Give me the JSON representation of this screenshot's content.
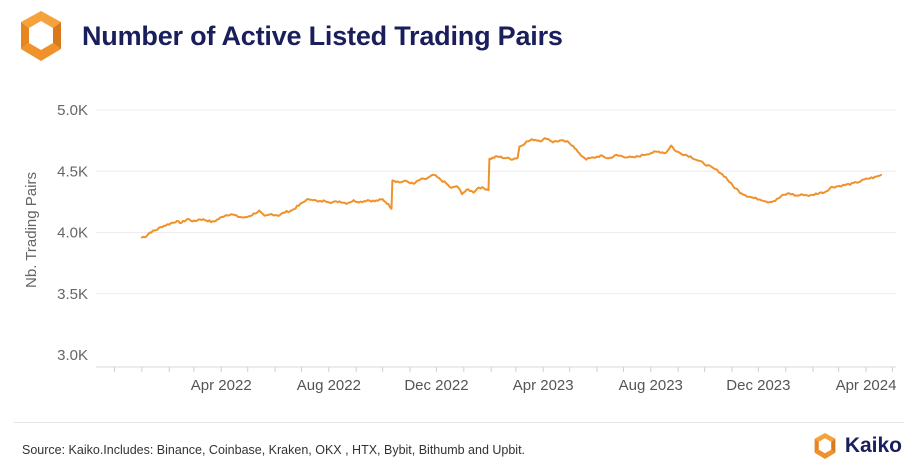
{
  "header": {
    "title": "Number of Active Listed Trading Pairs"
  },
  "footer": {
    "source": "Source: Kaiko.Includes: Binance, Coinbase, Kraken, OKX , HTX, Bybit, Bithumb and Upbit.",
    "brand": "Kaiko"
  },
  "colors": {
    "line": "#f0922b",
    "title": "#1a1f5c",
    "logo_orange": "#f0922b",
    "logo_dark": "#d9791a"
  },
  "icons": {
    "header_logo": "kaiko-logo-icon",
    "footer_logo": "kaiko-logo-icon"
  },
  "chart_data": {
    "type": "line",
    "title": "Number of Active Listed Trading Pairs",
    "xlabel": "",
    "ylabel": "Nb. Trading Pairs",
    "ylim": [
      3000,
      5000
    ],
    "yticks": [
      3000,
      3500,
      4000,
      4500,
      5000
    ],
    "ytick_labels": [
      "3.0K",
      "3.5K",
      "4.0K",
      "4.5K",
      "5.0K"
    ],
    "xtick_labels": [
      "Apr 2022",
      "Aug 2022",
      "Dec 2022",
      "Apr 2023",
      "Aug 2023",
      "Dec 2023",
      "Apr 2024"
    ],
    "xticks": [
      "2022-04-01",
      "2022-08-01",
      "2022-12-01",
      "2023-04-01",
      "2023-08-01",
      "2023-12-01",
      "2024-04-01"
    ],
    "grid": "horizontal",
    "series": [
      {
        "color": "#f0922b",
        "points": [
          [
            "2022-01-01",
            3960
          ],
          [
            "2022-01-06",
            3970
          ],
          [
            "2022-01-10",
            4000
          ],
          [
            "2022-01-17",
            4020
          ],
          [
            "2022-01-24",
            4050
          ],
          [
            "2022-02-01",
            4070
          ],
          [
            "2022-02-08",
            4090
          ],
          [
            "2022-02-15",
            4080
          ],
          [
            "2022-02-22",
            4110
          ],
          [
            "2022-03-01",
            4090
          ],
          [
            "2022-03-08",
            4110
          ],
          [
            "2022-03-15",
            4100
          ],
          [
            "2022-03-22",
            4085
          ],
          [
            "2022-03-29",
            4110
          ],
          [
            "2022-04-05",
            4140
          ],
          [
            "2022-04-12",
            4150
          ],
          [
            "2022-04-20",
            4130
          ],
          [
            "2022-04-28",
            4120
          ],
          [
            "2022-05-06",
            4145
          ],
          [
            "2022-05-14",
            4175
          ],
          [
            "2022-05-20",
            4130
          ],
          [
            "2022-05-28",
            4150
          ],
          [
            "2022-06-05",
            4140
          ],
          [
            "2022-06-12",
            4165
          ],
          [
            "2022-06-20",
            4180
          ],
          [
            "2022-06-28",
            4220
          ],
          [
            "2022-07-05",
            4260
          ],
          [
            "2022-07-12",
            4275
          ],
          [
            "2022-07-20",
            4250
          ],
          [
            "2022-07-28",
            4260
          ],
          [
            "2022-08-05",
            4245
          ],
          [
            "2022-08-13",
            4255
          ],
          [
            "2022-08-21",
            4240
          ],
          [
            "2022-08-29",
            4260
          ],
          [
            "2022-09-06",
            4250
          ],
          [
            "2022-09-14",
            4265
          ],
          [
            "2022-09-22",
            4255
          ],
          [
            "2022-10-01",
            4270
          ],
          [
            "2022-10-06",
            4240
          ],
          [
            "2022-10-11",
            4200
          ],
          [
            "2022-10-12",
            4430
          ],
          [
            "2022-10-20",
            4410
          ],
          [
            "2022-10-28",
            4420
          ],
          [
            "2022-11-05",
            4395
          ],
          [
            "2022-11-12",
            4430
          ],
          [
            "2022-11-20",
            4440
          ],
          [
            "2022-11-28",
            4470
          ],
          [
            "2022-12-04",
            4440
          ],
          [
            "2022-12-12",
            4400
          ],
          [
            "2022-12-18",
            4360
          ],
          [
            "2022-12-24",
            4380
          ],
          [
            "2022-12-30",
            4320
          ],
          [
            "2023-01-06",
            4350
          ],
          [
            "2023-01-12",
            4330
          ],
          [
            "2023-01-18",
            4370
          ],
          [
            "2023-01-24",
            4360
          ],
          [
            "2023-01-29",
            4350
          ],
          [
            "2023-01-30",
            4600
          ],
          [
            "2023-02-08",
            4620
          ],
          [
            "2023-02-16",
            4610
          ],
          [
            "2023-02-24",
            4600
          ],
          [
            "2023-03-03",
            4610
          ],
          [
            "2023-03-05",
            4700
          ],
          [
            "2023-03-13",
            4740
          ],
          [
            "2023-03-21",
            4760
          ],
          [
            "2023-03-29",
            4750
          ],
          [
            "2023-04-05",
            4770
          ],
          [
            "2023-04-12",
            4740
          ],
          [
            "2023-04-20",
            4750
          ],
          [
            "2023-04-28",
            4740
          ],
          [
            "2023-05-05",
            4710
          ],
          [
            "2023-05-12",
            4640
          ],
          [
            "2023-05-20",
            4600
          ],
          [
            "2023-05-28",
            4610
          ],
          [
            "2023-06-05",
            4625
          ],
          [
            "2023-06-14",
            4605
          ],
          [
            "2023-06-23",
            4630
          ],
          [
            "2023-07-02",
            4620
          ],
          [
            "2023-07-12",
            4610
          ],
          [
            "2023-07-22",
            4630
          ],
          [
            "2023-08-01",
            4650
          ],
          [
            "2023-08-10",
            4660
          ],
          [
            "2023-08-18",
            4650
          ],
          [
            "2023-08-24",
            4710
          ],
          [
            "2023-08-30",
            4660
          ],
          [
            "2023-09-07",
            4640
          ],
          [
            "2023-09-15",
            4620
          ],
          [
            "2023-09-23",
            4590
          ],
          [
            "2023-10-01",
            4560
          ],
          [
            "2023-10-09",
            4530
          ],
          [
            "2023-10-17",
            4500
          ],
          [
            "2023-10-25",
            4450
          ],
          [
            "2023-11-02",
            4380
          ],
          [
            "2023-11-10",
            4330
          ],
          [
            "2023-11-18",
            4300
          ],
          [
            "2023-11-26",
            4280
          ],
          [
            "2023-12-04",
            4270
          ],
          [
            "2023-12-12",
            4250
          ],
          [
            "2023-12-20",
            4260
          ],
          [
            "2023-12-28",
            4300
          ],
          [
            "2024-01-05",
            4320
          ],
          [
            "2024-01-13",
            4300
          ],
          [
            "2024-01-21",
            4310
          ],
          [
            "2024-01-29",
            4300
          ],
          [
            "2024-02-06",
            4320
          ],
          [
            "2024-02-14",
            4330
          ],
          [
            "2024-02-22",
            4370
          ],
          [
            "2024-03-02",
            4380
          ],
          [
            "2024-03-10",
            4390
          ],
          [
            "2024-03-18",
            4400
          ],
          [
            "2024-03-26",
            4420
          ],
          [
            "2024-04-03",
            4440
          ],
          [
            "2024-04-11",
            4450
          ],
          [
            "2024-04-18",
            4470
          ]
        ]
      }
    ]
  }
}
